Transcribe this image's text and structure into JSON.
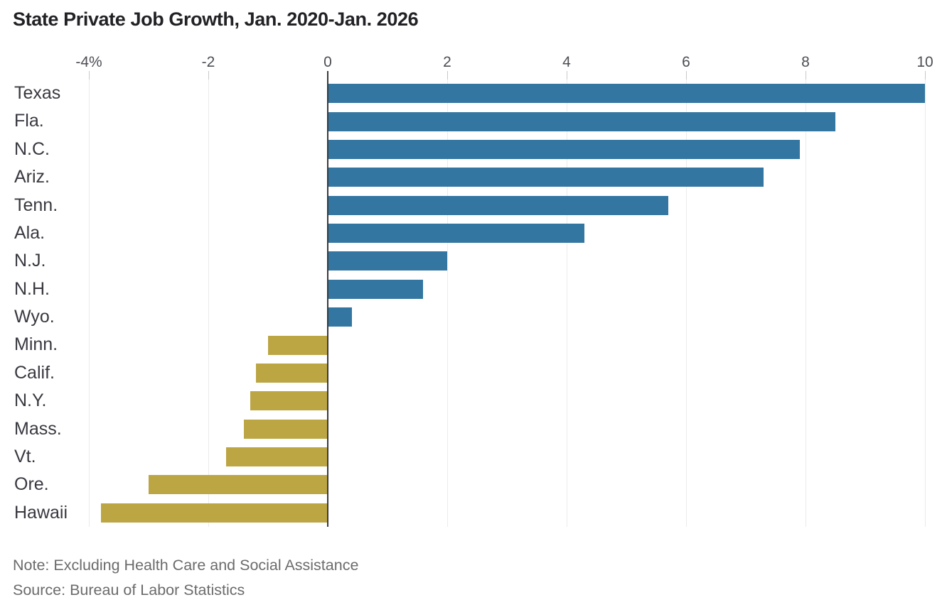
{
  "title": "State Private Job Growth, Jan. 2020-Jan. 2026",
  "notes": {
    "note": "Note: Excluding Health Care and Social Assistance",
    "source": "Source: Bureau of Labor Statistics"
  },
  "colors": {
    "positive_bar": "#3376A1",
    "negative_bar": "#BCA644",
    "zero_axis": "#3b3b3b",
    "gridline": "#ebebeb",
    "tick": "#c9c9c9",
    "title_text": "#222226",
    "label_text": "#383840",
    "note_text": "#6b6b6b"
  },
  "chart_data": {
    "type": "bar",
    "orientation": "horizontal",
    "title": "State Private Job Growth, Jan. 2020-Jan. 2026",
    "unit": "%",
    "categories": [
      "Texas",
      "Fla.",
      "N.C.",
      "Ariz.",
      "Tenn.",
      "Ala.",
      "N.J.",
      "N.H.",
      "Wyo.",
      "Minn.",
      "Calif.",
      "N.Y.",
      "Mass.",
      "Vt.",
      "Ore.",
      "Hawaii"
    ],
    "values": [
      10.0,
      8.5,
      7.9,
      7.3,
      5.7,
      4.3,
      2.0,
      1.6,
      0.4,
      -1.0,
      -1.2,
      -1.3,
      -1.4,
      -1.7,
      -3.0,
      -3.8
    ],
    "xlim": [
      -4.5,
      10.4
    ],
    "x_ticks": [
      {
        "value": -4,
        "label": "-4%"
      },
      {
        "value": -2,
        "label": "-2"
      },
      {
        "value": 0,
        "label": "0"
      },
      {
        "value": 2,
        "label": "2"
      },
      {
        "value": 4,
        "label": "4"
      },
      {
        "value": 6,
        "label": "6"
      },
      {
        "value": 8,
        "label": "8"
      },
      {
        "value": 10,
        "label": "10"
      }
    ],
    "grid": true,
    "legend": "none",
    "note": "Note: Excluding Health Care and Social Assistance",
    "source": "Source: Bureau of Labor Statistics"
  }
}
